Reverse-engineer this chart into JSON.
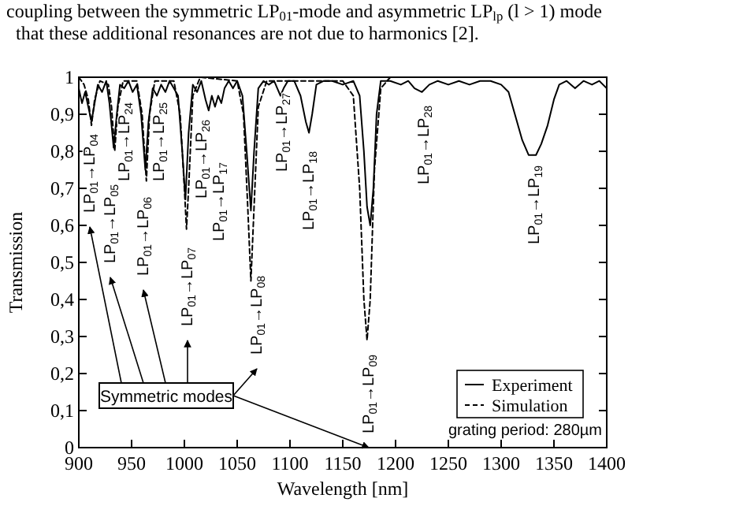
{
  "chart_data": {
    "type": "line",
    "xlabel": "Wavelength [nm]",
    "ylabel": "Transmission",
    "xlim": [
      900,
      1400
    ],
    "xticks": [
      900,
      950,
      1000,
      1050,
      1100,
      1150,
      1200,
      1250,
      1300,
      1350,
      1400
    ],
    "ylim": [
      0,
      1
    ],
    "yticks": [
      0,
      {
        "value": 0.1,
        "label": "0,1"
      },
      {
        "value": 0.2,
        "label": "0,2"
      },
      {
        "value": 0.3,
        "label": "0,3"
      },
      {
        "value": 0.4,
        "label": "0,4"
      },
      {
        "value": 0.5,
        "label": "0,5"
      },
      {
        "value": 0.6,
        "label": "0,6"
      },
      {
        "value": 0.7,
        "label": "0,7"
      },
      {
        "value": 0.8,
        "label": "0,8"
      },
      {
        "value": 0.9,
        "label": "0,9"
      },
      1
    ],
    "grid": false,
    "legend": "bottom right",
    "series": [
      {
        "name": "Experiment",
        "color": "#000000",
        "line_style": "solid",
        "x": [
          900,
          903,
          906,
          909,
          912,
          915,
          918,
          922,
          926,
          929,
          933,
          936,
          939,
          943,
          947,
          951,
          955,
          959,
          963,
          966,
          970,
          974,
          978,
          982,
          986,
          990,
          994,
          998,
          1001,
          1004,
          1008,
          1012,
          1016,
          1020,
          1023,
          1026,
          1029,
          1032,
          1035,
          1038,
          1042,
          1046,
          1050,
          1055,
          1059,
          1063,
          1066,
          1070,
          1075,
          1080,
          1085,
          1088,
          1091,
          1094,
          1098,
          1104,
          1110,
          1115,
          1118,
          1121,
          1125,
          1132,
          1140,
          1150,
          1160,
          1166,
          1170,
          1173,
          1176,
          1179,
          1182,
          1186,
          1195,
          1205,
          1212,
          1218,
          1225,
          1232,
          1240,
          1250,
          1260,
          1270,
          1280,
          1290,
          1300,
          1307,
          1313,
          1320,
          1326,
          1333,
          1338,
          1344,
          1350,
          1355,
          1362,
          1370,
          1378,
          1386,
          1393,
          1400
        ],
        "values": [
          0.97,
          0.93,
          0.96,
          0.92,
          0.88,
          0.93,
          0.98,
          0.96,
          0.99,
          0.93,
          0.81,
          0.9,
          0.98,
          0.97,
          0.99,
          0.96,
          0.98,
          0.9,
          0.75,
          0.88,
          0.97,
          0.95,
          0.98,
          0.96,
          0.99,
          0.97,
          0.95,
          0.8,
          0.67,
          0.85,
          0.98,
          0.96,
          0.99,
          0.94,
          0.91,
          0.95,
          0.92,
          0.95,
          0.93,
          0.97,
          0.99,
          0.97,
          0.99,
          0.95,
          0.8,
          0.64,
          0.8,
          0.97,
          0.99,
          0.98,
          0.99,
          0.97,
          0.95,
          0.97,
          0.99,
          0.99,
          0.95,
          0.88,
          0.85,
          0.9,
          0.98,
          0.99,
          0.99,
          0.98,
          0.99,
          0.95,
          0.8,
          0.65,
          0.6,
          0.7,
          0.9,
          0.99,
          0.99,
          0.98,
          0.99,
          0.97,
          0.96,
          0.98,
          0.99,
          0.98,
          0.99,
          0.98,
          0.99,
          0.99,
          0.98,
          0.96,
          0.9,
          0.83,
          0.79,
          0.79,
          0.82,
          0.87,
          0.94,
          0.98,
          0.99,
          0.97,
          0.99,
          0.98,
          0.99,
          0.97
        ]
      },
      {
        "name": "Simulation",
        "color": "#000000",
        "line_style": "dashed",
        "x": [
          900,
          905,
          909,
          912,
          915,
          920,
          928,
          931,
          934,
          937,
          942,
          955,
          960,
          964,
          967,
          972,
          990,
          996,
          1000,
          1002,
          1004,
          1008,
          1015,
          1050,
          1056,
          1060,
          1063,
          1066,
          1070,
          1078,
          1150,
          1160,
          1166,
          1170,
          1173,
          1176,
          1180,
          1186,
          1195,
          1400
        ],
        "values": [
          1,
          0.98,
          0.94,
          0.87,
          0.94,
          0.99,
          0.98,
          0.92,
          0.8,
          0.92,
          0.99,
          0.99,
          0.9,
          0.72,
          0.9,
          0.99,
          0.99,
          0.9,
          0.7,
          0.59,
          0.7,
          0.95,
          1,
          0.99,
          0.9,
          0.65,
          0.45,
          0.65,
          0.92,
          0.99,
          0.99,
          0.95,
          0.7,
          0.4,
          0.29,
          0.4,
          0.75,
          0.97,
          1,
          1
        ]
      }
    ],
    "annotations": [
      "LP$_{01}$→LP$_{04}$",
      "LP$_{01}$→LP$_{05}$",
      "LP$_{01}$→LP$_{24}$",
      "LP$_{01}$→LP$_{06}$",
      "LP$_{01}$→LP$_{25}$",
      "LP$_{01}$→LP$_{07}$",
      "LP$_{01}$→LP$_{26}$",
      "LP$_{01}$→LP$_{17}$",
      "LP$_{01}$→LP$_{08}$",
      "LP$_{01}$→LP$_{27}$",
      "LP$_{01}$→LP$_{18}$",
      "LP$_{01}$→LP$_{09}$",
      "LP$_{01}$→LP$_{28}$",
      "LP$_{01}$→LP$_{19}$",
      "Symmetric modes",
      "grating period: 280µm",
      "coupling between the symmetric LP$_{01}$-mode and asymmetric LP$_{lp}$ (l > 1) mode",
      "that these additional resonances are not due to harmonics [2]."
    ]
  }
}
